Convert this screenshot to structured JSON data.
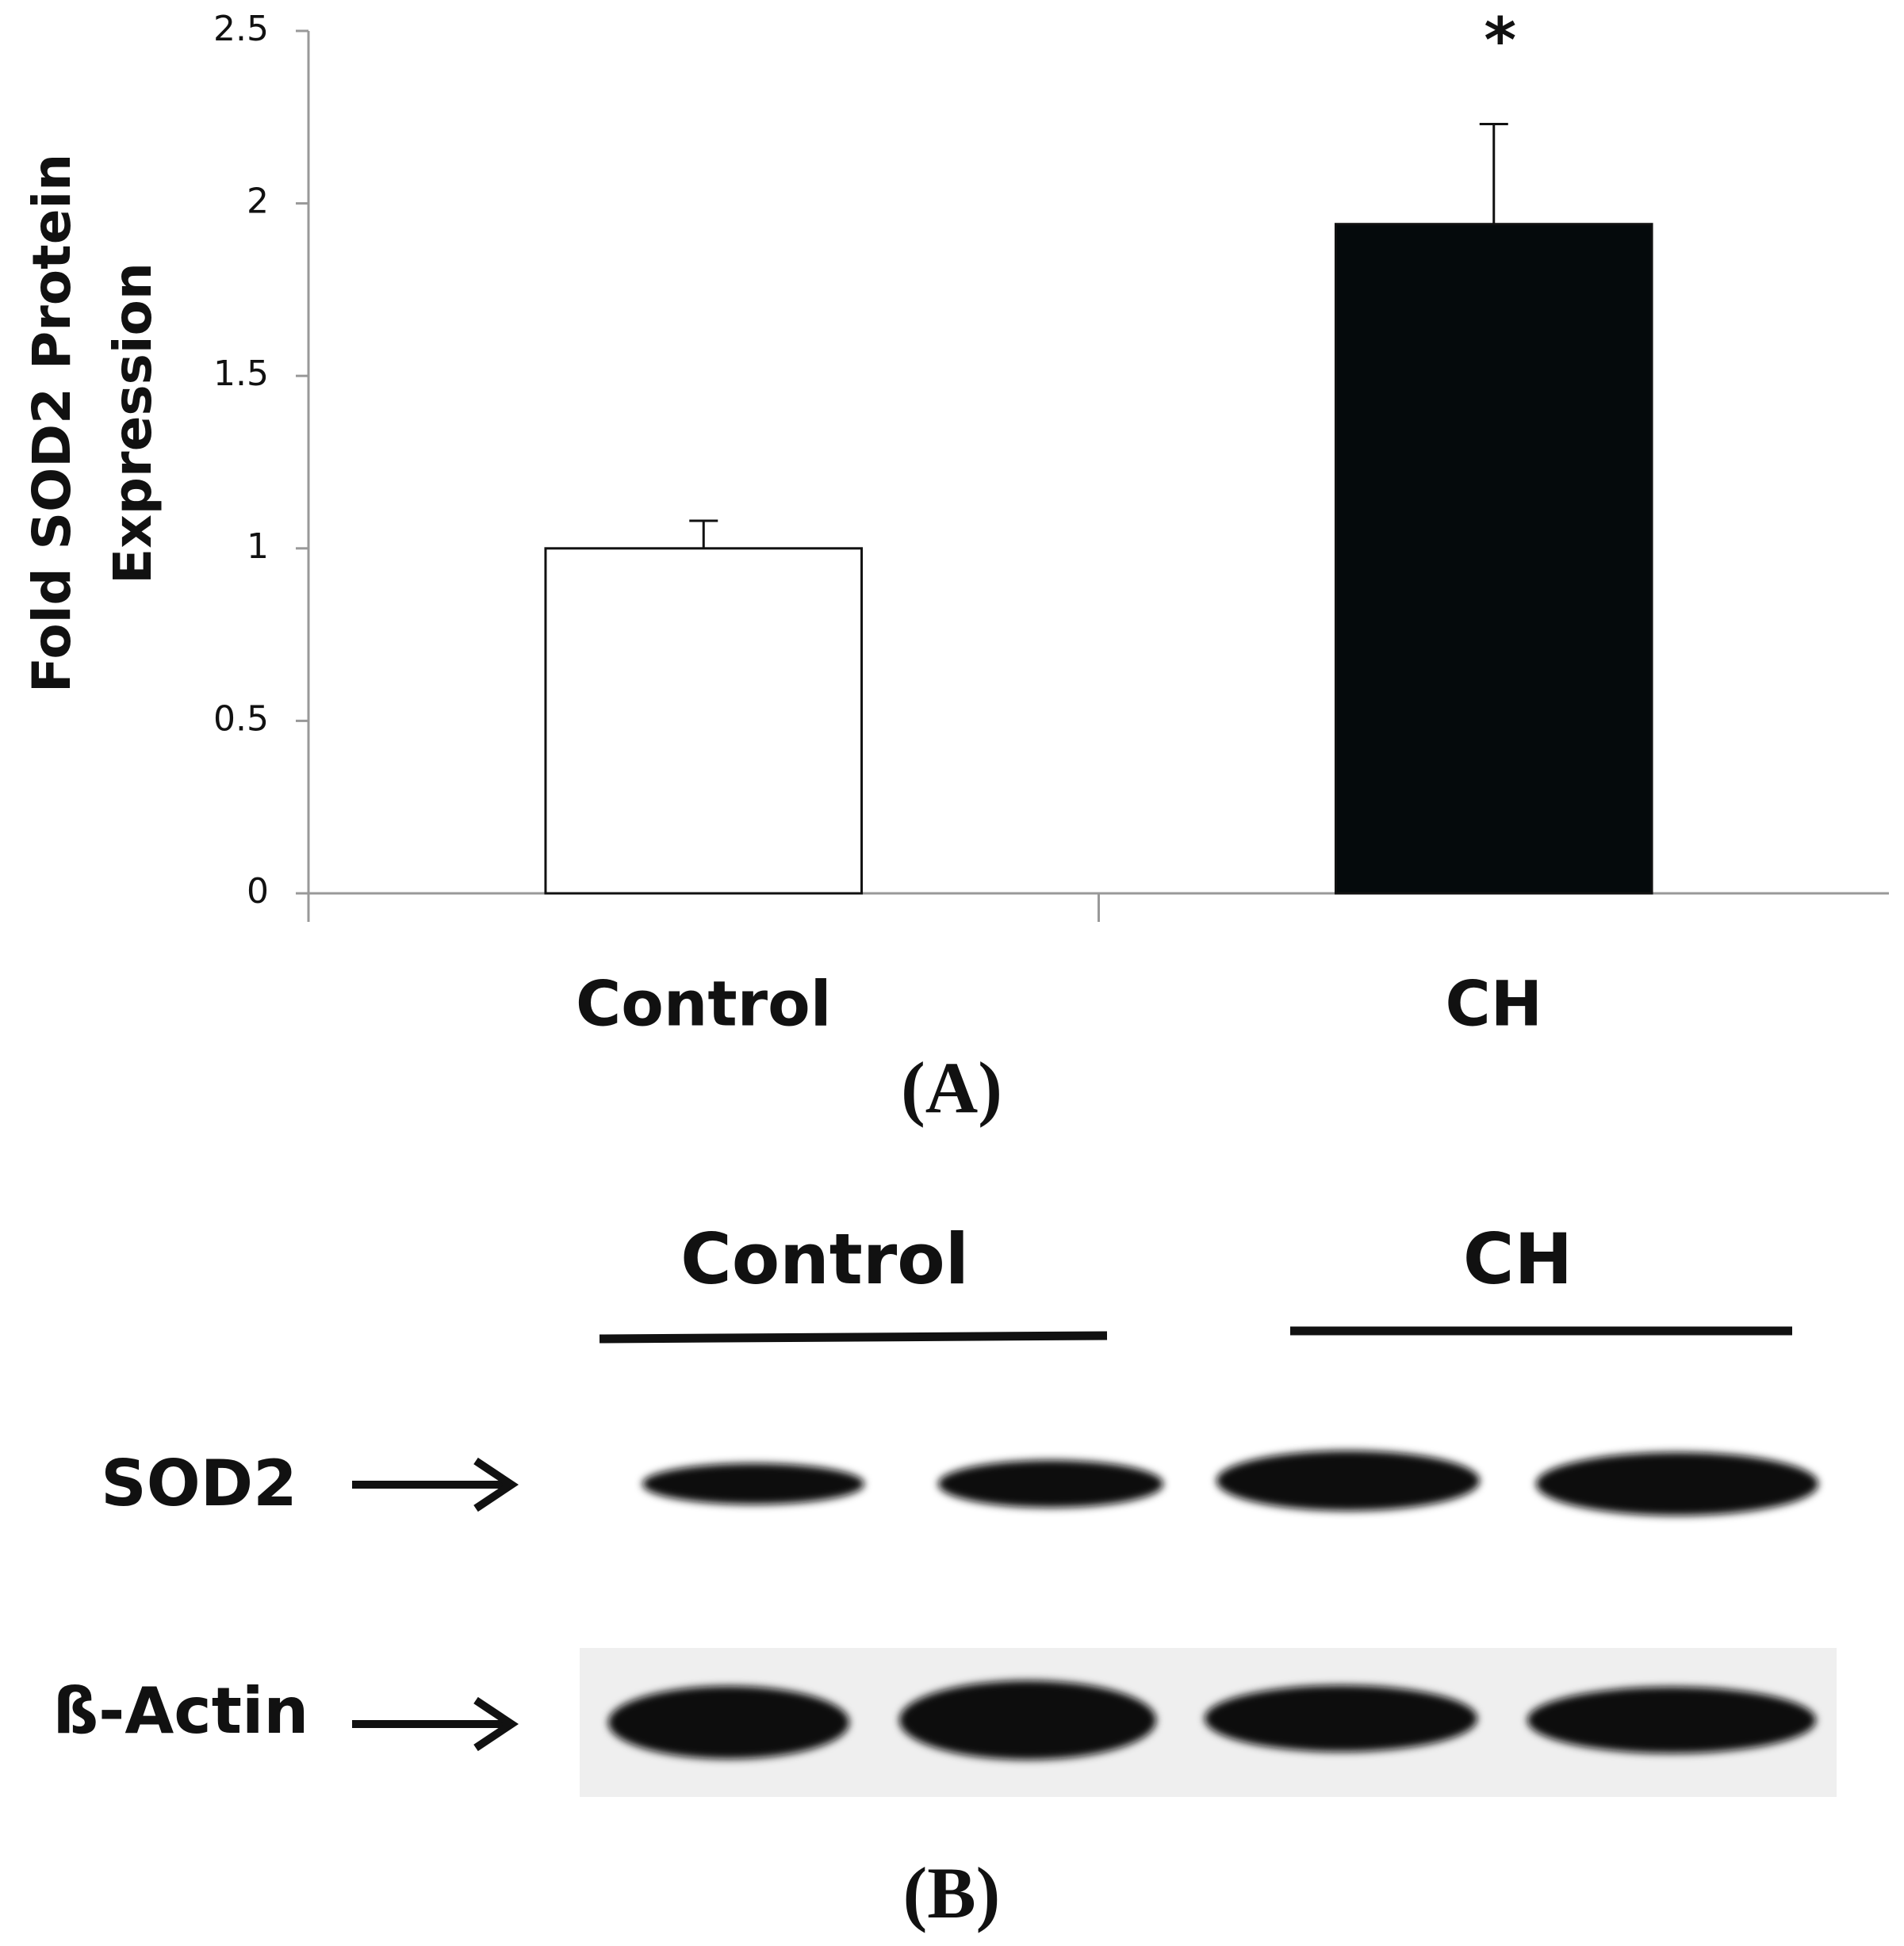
{
  "chart_data": {
    "type": "bar",
    "ylabel_lines": [
      "Fold  SOD2 Protein",
      "Expression"
    ],
    "categories": [
      "Control",
      "CH"
    ],
    "values": [
      1.0,
      1.94
    ],
    "errors": [
      0.08,
      0.29
    ],
    "colors": [
      "#ffffff",
      "#050a0c"
    ],
    "annotations": [
      "",
      "*"
    ],
    "ylim": [
      0,
      2.5
    ],
    "yticks": [
      0,
      0.5,
      1,
      1.5,
      2,
      2.5
    ],
    "grid": false
  },
  "panel_a": "(A)",
  "blot": {
    "groups": [
      "Control",
      "CH"
    ],
    "rows": [
      "SOD2",
      "ß-Actin"
    ]
  },
  "panel_b": "(B)"
}
